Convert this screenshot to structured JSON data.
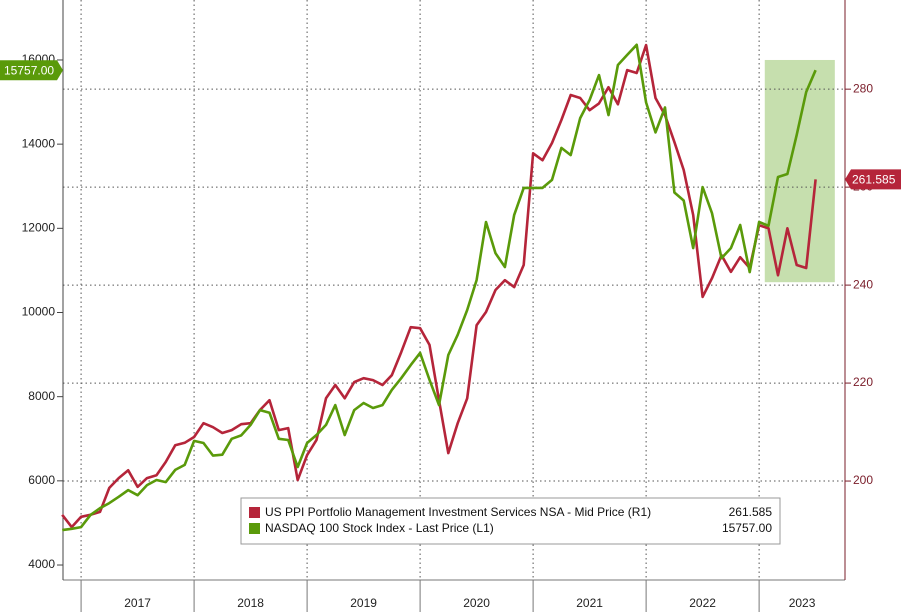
{
  "chart_data": {
    "type": "line",
    "x": [
      2016.833,
      2016.917,
      2017.0,
      2017.083,
      2017.167,
      2017.25,
      2017.333,
      2017.417,
      2017.5,
      2017.583,
      2017.667,
      2017.75,
      2017.833,
      2017.917,
      2018.0,
      2018.083,
      2018.167,
      2018.25,
      2018.333,
      2018.417,
      2018.5,
      2018.583,
      2018.667,
      2018.75,
      2018.833,
      2018.917,
      2019.0,
      2019.083,
      2019.167,
      2019.25,
      2019.333,
      2019.417,
      2019.5,
      2019.583,
      2019.667,
      2019.75,
      2019.833,
      2019.917,
      2020.0,
      2020.083,
      2020.167,
      2020.25,
      2020.333,
      2020.417,
      2020.5,
      2020.583,
      2020.667,
      2020.75,
      2020.833,
      2020.917,
      2021.0,
      2021.083,
      2021.167,
      2021.25,
      2021.333,
      2021.417,
      2021.5,
      2021.583,
      2021.667,
      2021.75,
      2021.833,
      2021.917,
      2022.0,
      2022.083,
      2022.167,
      2022.25,
      2022.333,
      2022.417,
      2022.5,
      2022.583,
      2022.667,
      2022.75,
      2022.833,
      2022.917,
      2023.0,
      2023.083,
      2023.167,
      2023.25,
      2023.333,
      2023.417,
      2023.5
    ],
    "series": [
      {
        "name": "US PPI Portfolio Management Investment Services NSA - Mid Price (R1)",
        "color": "#b5253a",
        "axis": "y2",
        "values": [
          193.1,
          190.6,
          192.7,
          193.1,
          193.7,
          198.6,
          200.6,
          202.2,
          198.8,
          200.6,
          201.2,
          203.9,
          207.3,
          207.8,
          209.0,
          211.8,
          211.0,
          209.8,
          210.4,
          211.6,
          211.8,
          214.5,
          216.5,
          210.4,
          210.8,
          200.2,
          205.3,
          208.4,
          216.9,
          219.6,
          216.9,
          220.2,
          221.0,
          220.6,
          219.6,
          221.6,
          226.3,
          231.4,
          231.2,
          227.8,
          216.5,
          205.7,
          211.8,
          216.9,
          231.8,
          234.5,
          239.0,
          241.0,
          239.6,
          244.1,
          266.9,
          265.5,
          269.0,
          273.7,
          278.8,
          278.2,
          275.7,
          277.1,
          280.4,
          276.9,
          283.9,
          283.3,
          289.0,
          278.2,
          274.7,
          269.2,
          263.5,
          254.3,
          237.6,
          241.4,
          246.1,
          242.7,
          245.7,
          243.5,
          252.2,
          251.6,
          242.0,
          251.6,
          244.1,
          243.5,
          261.585
        ]
      },
      {
        "name": "NASDAQ 100 Stock Index - Last Price (L1)",
        "color": "#5a9a0a",
        "axis": "y",
        "last_label": "15757.00",
        "values": [
          4830,
          4860,
          4900,
          5190,
          5350,
          5470,
          5620,
          5780,
          5660,
          5900,
          6020,
          5970,
          6260,
          6380,
          6950,
          6900,
          6600,
          6620,
          7000,
          7080,
          7330,
          7680,
          7620,
          7000,
          6970,
          6330,
          6900,
          7090,
          7330,
          7800,
          7090,
          7680,
          7850,
          7730,
          7800,
          8160,
          8440,
          8750,
          9040,
          8400,
          7800,
          8990,
          9470,
          10060,
          10770,
          12150,
          11410,
          11080,
          12320,
          12960,
          12960,
          12960,
          13150,
          13910,
          13740,
          14620,
          15050,
          15640,
          14690,
          15880,
          16120,
          16360,
          14990,
          14280,
          14870,
          12850,
          12660,
          11530,
          12980,
          12360,
          11290,
          11530,
          12080,
          10960,
          12150,
          12060,
          13220,
          13290,
          14220,
          15240,
          15757
        ]
      }
    ],
    "xlim": [
      2016.84,
      2023.76
    ],
    "xticks": [
      2017,
      2018,
      2019,
      2020,
      2021,
      2022,
      2023
    ],
    "ylim": [
      3644,
      17425
    ],
    "yticks": [
      4000,
      6000,
      8000,
      10000,
      12000,
      14000,
      16000
    ],
    "y2lim": [
      179.8,
      298.2
    ],
    "y2ticks": [
      200,
      220,
      240,
      260,
      280
    ],
    "grid": true,
    "legend": "bottom-right",
    "highlight": {
      "xlim": [
        2023.05,
        2023.67
      ],
      "ylim": [
        10720,
        16000
      ],
      "color": "#c6dfae"
    }
  }
}
